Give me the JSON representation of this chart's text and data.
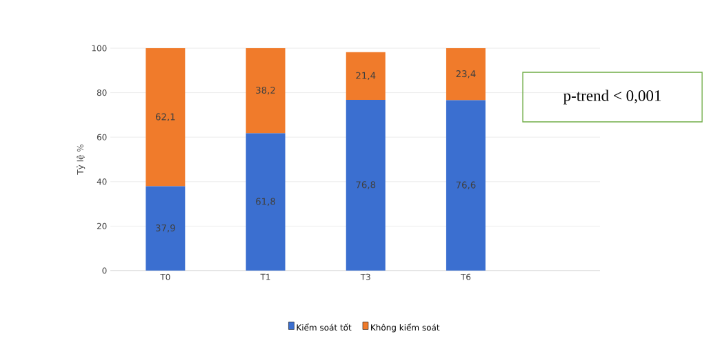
{
  "chart_data": {
    "type": "bar",
    "stacked": true,
    "ylabel": "Tỷ lệ %",
    "categories": [
      "T0",
      "T1",
      "T3",
      "T6"
    ],
    "series": [
      {
        "name": "Kiểm soát tốt",
        "color": "#3b6fd0",
        "values": [
          37.9,
          61.8,
          76.8,
          76.6
        ],
        "value_labels": [
          "37,9",
          "61,8",
          "76,8",
          "76,6"
        ]
      },
      {
        "name": "Không kiểm soát",
        "color": "#f07b2b",
        "values": [
          62.1,
          38.2,
          21.4,
          23.4
        ],
        "value_labels": [
          "62,1",
          "38,2",
          "21,4",
          "23,4"
        ]
      }
    ],
    "ylim": [
      0,
      100
    ],
    "yticks": [
      0,
      20,
      40,
      60,
      80,
      100
    ],
    "grid": "y",
    "legend": "bottom",
    "annotations": [
      "p-trend < 0,001"
    ]
  }
}
